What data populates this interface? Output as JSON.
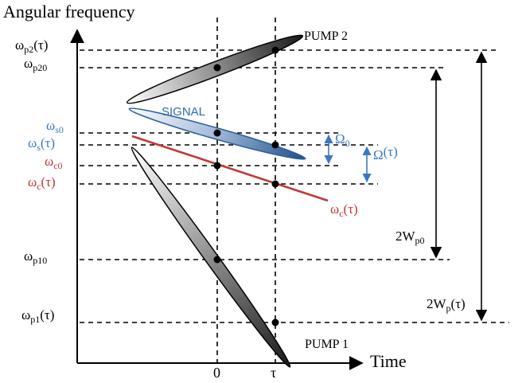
{
  "axes": {
    "y_title": "Angular frequency",
    "x_title": "Time",
    "x_tick_0": "0",
    "x_tick_tau": "τ"
  },
  "labels": {
    "wp2_tau": {
      "base": "ω",
      "sub": "p2",
      "tail": "(τ)"
    },
    "wp20": {
      "base": "ω",
      "sub": "p20",
      "tail": ""
    },
    "ws0": {
      "base": "ω",
      "sub": "s0",
      "tail": ""
    },
    "ws_tau": {
      "base": "ω",
      "sub": "s",
      "tail": "(τ)"
    },
    "wc0": {
      "base": "ω",
      "sub": "c0",
      "tail": ""
    },
    "wc_tau": {
      "base": "ω",
      "sub": "c",
      "tail": "(τ)"
    },
    "wp10": {
      "base": "ω",
      "sub": "p10",
      "tail": ""
    },
    "wp1_tau": {
      "base": "ω",
      "sub": "p1",
      "tail": "(τ)"
    },
    "wc_tau_line": {
      "base": "ω",
      "sub": "c",
      "tail": "(τ)"
    },
    "omega0": {
      "base": "Ω",
      "sub": "0",
      "tail": ""
    },
    "omega_tau": {
      "base": "Ω",
      "sub": "",
      "tail": "(τ)"
    },
    "w_p0": {
      "base": "2W",
      "sub": "p0",
      "tail": ""
    },
    "w_p_tau": {
      "base": "2W",
      "sub": "p",
      "tail": "(τ)"
    }
  },
  "pulses": {
    "pump1": "PUMP 1",
    "pump2": "PUMP 2",
    "signal": "SIGNAL"
  },
  "colors": {
    "axis": "#000000",
    "signal": "#2e6bb0",
    "idler": "#c0393b",
    "arrow_blue": "#3a78c2"
  }
}
